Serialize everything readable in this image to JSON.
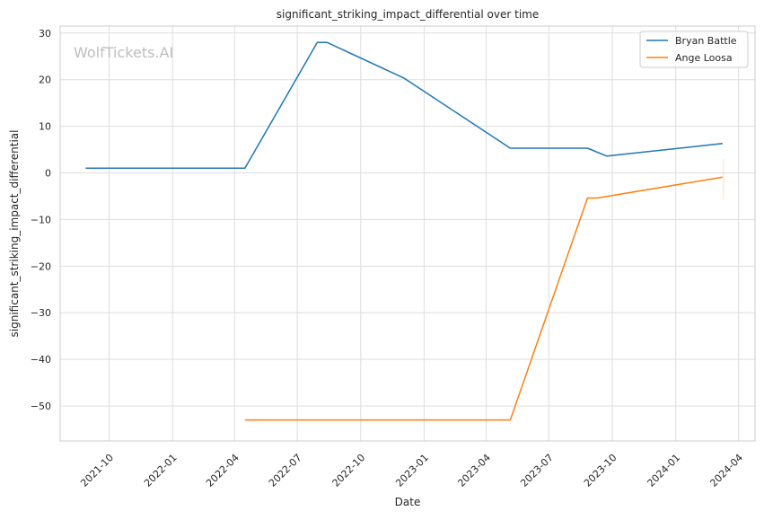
{
  "chart_data": {
    "type": "line",
    "title": "significant_striking_impact_differential over time",
    "xlabel": "Date",
    "ylabel": "significant_striking_impact_differential",
    "watermark": "WolfTickets.AI",
    "xlim": [
      "2021-07-22",
      "2024-04-25"
    ],
    "ylim": [
      -57.5,
      31.5
    ],
    "grid": true,
    "legend_position": "top-right",
    "x_ticks": [
      "2021-10",
      "2022-01",
      "2022-04",
      "2022-07",
      "2022-10",
      "2023-01",
      "2023-04",
      "2023-07",
      "2023-10",
      "2024-01",
      "2024-04"
    ],
    "y_ticks": [
      30,
      20,
      10,
      0,
      -10,
      -20,
      -30,
      -40,
      -50
    ],
    "y_tick_labels": [
      "30",
      "20",
      "10",
      "0",
      "−10",
      "−20",
      "−30",
      "−40",
      "−50"
    ],
    "series": [
      {
        "name": "Bryan Battle",
        "color": "#1f77b4",
        "x": [
          "2021-08-28",
          "2022-04-16",
          "2022-07-30",
          "2022-08-13",
          "2022-12-03",
          "2023-05-06",
          "2023-08-26",
          "2023-09-23",
          "2024-03-09"
        ],
        "y": [
          1.0,
          1.0,
          28.0,
          28.0,
          20.3,
          5.3,
          5.3,
          3.6,
          6.3
        ]
      },
      {
        "name": "Ange Loosa",
        "color": "#ff7f0e",
        "x": [
          "2022-04-16",
          "2023-05-06",
          "2023-08-26",
          "2023-09-09",
          "2024-03-09"
        ],
        "y": [
          -53.0,
          -53.0,
          -5.4,
          -5.4,
          -0.9
        ]
      }
    ]
  }
}
